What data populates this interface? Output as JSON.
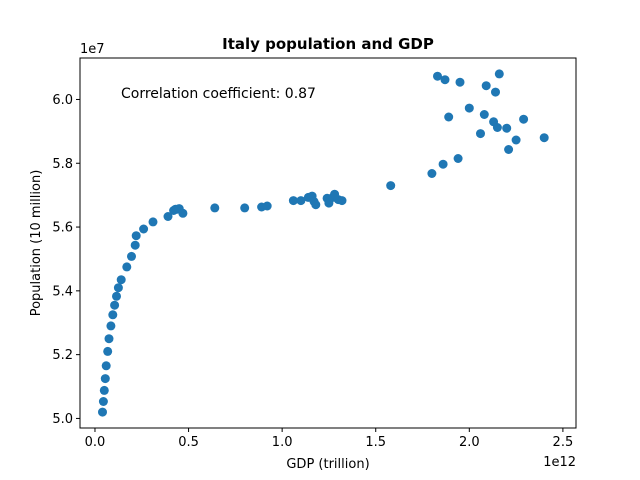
{
  "chart_data": {
    "type": "scatter",
    "title": "Italy population and GDP",
    "xlabel": "GDP (trillion)",
    "ylabel": "Population (10 million)",
    "x_offset_label": "1e12",
    "y_offset_label": "1e7",
    "annotation": "Correlation coefficient: 0.87",
    "xlim": [
      -0.08,
      2.57
    ],
    "ylim": [
      4.97,
      6.13
    ],
    "x_ticks": [
      0.0,
      0.5,
      1.0,
      1.5,
      2.0,
      2.5
    ],
    "x_tick_labels": [
      "0.0",
      "0.5",
      "1.0",
      "1.5",
      "2.0",
      "2.5"
    ],
    "y_ticks": [
      5.0,
      5.2,
      5.4,
      5.6,
      5.8,
      6.0
    ],
    "y_tick_labels": [
      "5.0",
      "5.2",
      "5.4",
      "5.6",
      "5.8",
      "6.0"
    ],
    "grid": false,
    "marker_color": "#1f77b4",
    "points": [
      [
        0.04,
        5.02
      ],
      [
        0.045,
        5.053
      ],
      [
        0.05,
        5.088
      ],
      [
        0.055,
        5.125
      ],
      [
        0.06,
        5.165
      ],
      [
        0.068,
        5.21
      ],
      [
        0.075,
        5.25
      ],
      [
        0.085,
        5.29
      ],
      [
        0.095,
        5.325
      ],
      [
        0.105,
        5.355
      ],
      [
        0.115,
        5.383
      ],
      [
        0.125,
        5.41
      ],
      [
        0.14,
        5.435
      ],
      [
        0.17,
        5.475
      ],
      [
        0.195,
        5.508
      ],
      [
        0.215,
        5.543
      ],
      [
        0.22,
        5.573
      ],
      [
        0.26,
        5.594
      ],
      [
        0.31,
        5.616
      ],
      [
        0.39,
        5.633
      ],
      [
        0.42,
        5.652
      ],
      [
        0.43,
        5.656
      ],
      [
        0.44,
        5.656
      ],
      [
        0.45,
        5.658
      ],
      [
        0.47,
        5.643
      ],
      [
        0.64,
        5.66
      ],
      [
        0.8,
        5.66
      ],
      [
        0.89,
        5.663
      ],
      [
        0.92,
        5.666
      ],
      [
        1.06,
        5.683
      ],
      [
        1.1,
        5.683
      ],
      [
        1.14,
        5.693
      ],
      [
        1.16,
        5.697
      ],
      [
        1.17,
        5.68
      ],
      [
        1.18,
        5.67
      ],
      [
        1.24,
        5.69
      ],
      [
        1.25,
        5.675
      ],
      [
        1.27,
        5.693
      ],
      [
        1.28,
        5.703
      ],
      [
        1.3,
        5.686
      ],
      [
        1.32,
        5.683
      ],
      [
        1.58,
        5.73
      ],
      [
        1.8,
        5.768
      ],
      [
        1.83,
        6.073
      ],
      [
        1.86,
        5.797
      ],
      [
        1.87,
        6.062
      ],
      [
        1.89,
        5.945
      ],
      [
        1.94,
        5.815
      ],
      [
        1.95,
        6.054
      ],
      [
        2.0,
        5.973
      ],
      [
        2.06,
        5.893
      ],
      [
        2.08,
        5.953
      ],
      [
        2.09,
        6.043
      ],
      [
        2.13,
        5.93
      ],
      [
        2.14,
        6.023
      ],
      [
        2.15,
        5.912
      ],
      [
        2.16,
        6.08
      ],
      [
        2.2,
        5.91
      ],
      [
        2.21,
        5.843
      ],
      [
        2.25,
        5.873
      ],
      [
        2.29,
        5.938
      ],
      [
        2.4,
        5.88
      ]
    ]
  }
}
